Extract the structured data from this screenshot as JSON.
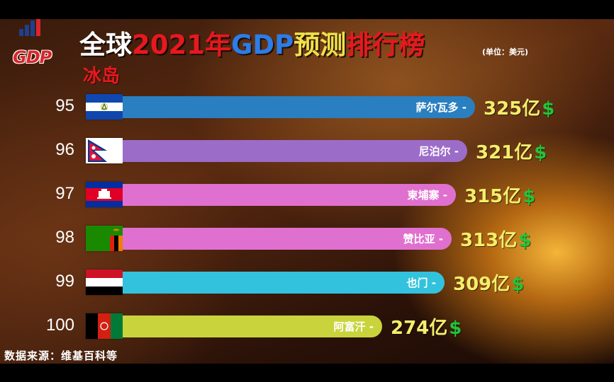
{
  "title": {
    "part1": "全球",
    "part2": "2021年",
    "part3": "GDP",
    "part4": "预测",
    "part5": "排行榜",
    "color1": "#ffffff",
    "color2": "#e8181e",
    "color3": "#2b7de9",
    "color4": "#f0e04a",
    "color5": "#e8181e"
  },
  "unit_note": "(单位：美元)",
  "highlight": "冰岛",
  "logo_text": "GDP",
  "source": "数据来源：维基百科等",
  "value_suffix": "亿",
  "currency_symbol": "$",
  "chart_data": {
    "type": "bar",
    "orientation": "horizontal",
    "value_unit": "亿美元",
    "rows": [
      {
        "rank": "95",
        "country": "萨尔瓦多",
        "value": 325,
        "value_label": "325亿",
        "color": "#2a7fc0",
        "flag": "el-salvador-flag-icon"
      },
      {
        "rank": "96",
        "country": "尼泊尔",
        "value": 321,
        "value_label": "321亿",
        "color": "#9c6cc9",
        "flag": "nepal-flag-icon"
      },
      {
        "rank": "97",
        "country": "柬埔寨",
        "value": 315,
        "value_label": "315亿",
        "color": "#e070cf",
        "flag": "cambodia-flag-icon"
      },
      {
        "rank": "98",
        "country": "赞比亚",
        "value": 313,
        "value_label": "313亿",
        "color": "#e070cf",
        "flag": "zambia-flag-icon"
      },
      {
        "rank": "99",
        "country": "也门",
        "value": 309,
        "value_label": "309亿",
        "color": "#33c2dd",
        "flag": "yemen-flag-icon"
      },
      {
        "rank": "100",
        "country": "阿富汗",
        "value": 274,
        "value_label": "274亿",
        "color": "#c9d43c",
        "flag": "afghanistan-flag-icon"
      }
    ]
  }
}
